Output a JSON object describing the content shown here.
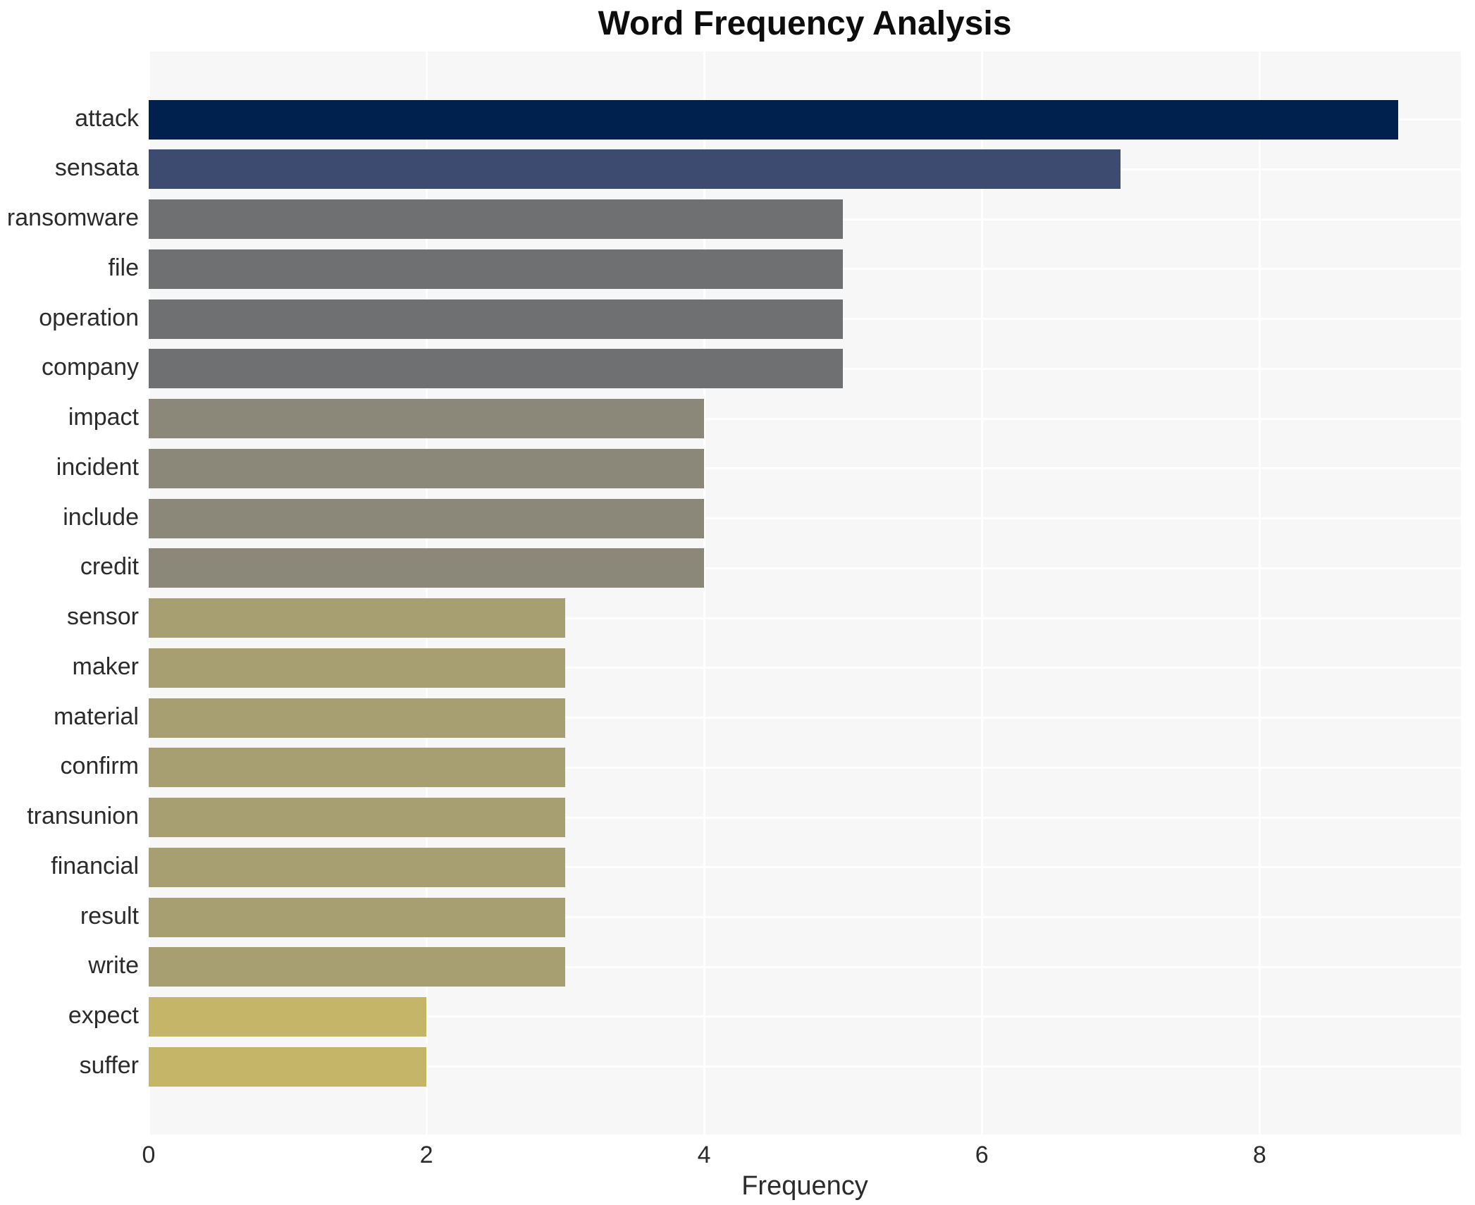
{
  "title": "Word Frequency Analysis",
  "xlabel": "Frequency",
  "plot_background": "#f7f7f8",
  "grid_color": "#ffffff",
  "text_color": "#2b2b2b",
  "chart_data": {
    "type": "bar",
    "orientation": "horizontal",
    "title": "Word Frequency Analysis",
    "xlabel": "Frequency",
    "ylabel": "",
    "xlim": [
      0,
      9.45
    ],
    "x_ticks": [
      0,
      2,
      4,
      6,
      8
    ],
    "grid": true,
    "legend": false,
    "categories": [
      "attack",
      "sensata",
      "ransomware",
      "file",
      "operation",
      "company",
      "impact",
      "incident",
      "include",
      "credit",
      "sensor",
      "maker",
      "material",
      "confirm",
      "transunion",
      "financial",
      "result",
      "write",
      "expect",
      "suffer"
    ],
    "values": [
      9,
      7,
      5,
      5,
      5,
      5,
      4,
      4,
      4,
      4,
      3,
      3,
      3,
      3,
      3,
      3,
      3,
      3,
      2,
      2
    ],
    "bar_colors": [
      "#00214d",
      "#3e4b70",
      "#6f7072",
      "#6f7072",
      "#6f7072",
      "#6f7072",
      "#8b8779",
      "#8b8779",
      "#8b8779",
      "#8b8779",
      "#a79e71",
      "#a79e71",
      "#a79e71",
      "#a79e71",
      "#a79e71",
      "#a79e71",
      "#a79e71",
      "#a79e71",
      "#c5b569",
      "#c5b569"
    ]
  }
}
